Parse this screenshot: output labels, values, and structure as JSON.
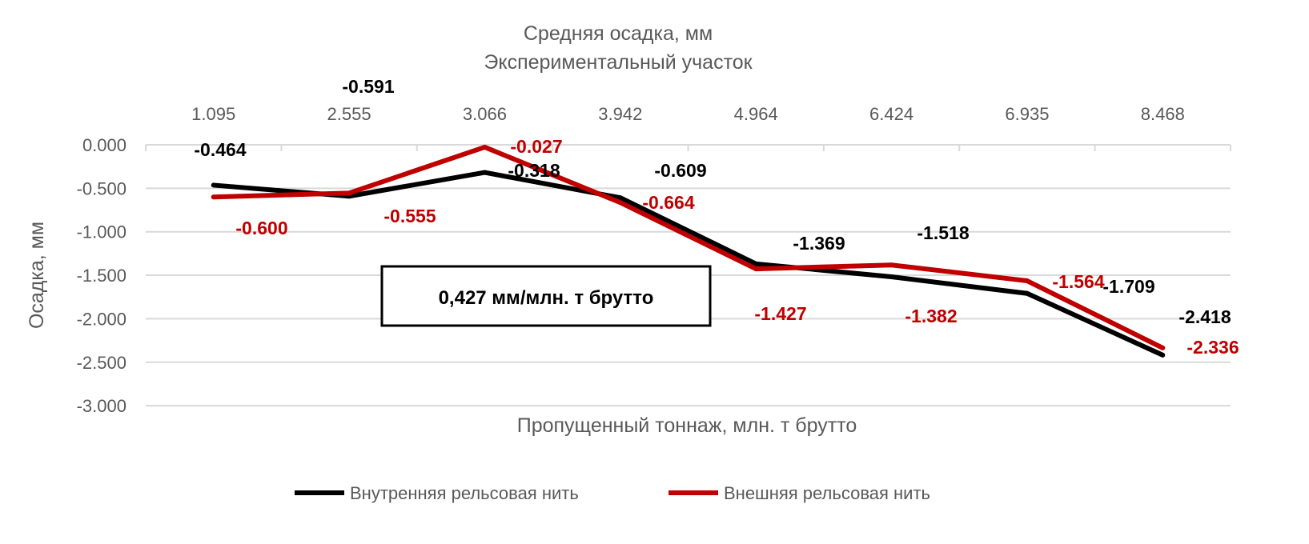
{
  "chart_data": {
    "type": "line",
    "title": "Средняя осадка, мм",
    "subtitle": "Экспериментальный участок",
    "xlabel": "Пропущенный тоннаж, млн. т брутто",
    "ylabel": "Осадка, мм",
    "categories": [
      "1.095",
      "2.555",
      "3.066",
      "3.942",
      "4.964",
      "6.424",
      "6.935",
      "8.468"
    ],
    "y_ticks": [
      "0.000",
      "-0.500",
      "-1.000",
      "-1.500",
      "-2.000",
      "-2.500",
      "-3.000"
    ],
    "ylim": [
      -3,
      0
    ],
    "grid": "horizontal",
    "x_axis_position": "top",
    "legend": "bottom",
    "annotation": "0,427 мм/млн. т брутто",
    "series": [
      {
        "name": "Внутренняя рельсовая нить",
        "color": "#000000",
        "values": [
          -0.464,
          -0.591,
          -0.318,
          -0.609,
          -1.369,
          -1.518,
          -1.709,
          -2.418
        ],
        "labels": [
          "-0.464",
          "-0.591",
          "-0.318",
          "-0.609",
          "-1.369",
          "-1.518",
          "-1.709",
          "-2.418"
        ]
      },
      {
        "name": "Внешняя рельсовая нить",
        "color": "#C00000",
        "values": [
          -0.6,
          -0.555,
          -0.027,
          -0.664,
          -1.427,
          -1.382,
          -1.564,
          -2.336
        ],
        "labels": [
          "-0.600",
          "-0.555",
          "-0.027",
          "-0.664",
          "-1.427",
          "-1.382",
          "-1.564",
          "-2.336"
        ]
      }
    ]
  }
}
